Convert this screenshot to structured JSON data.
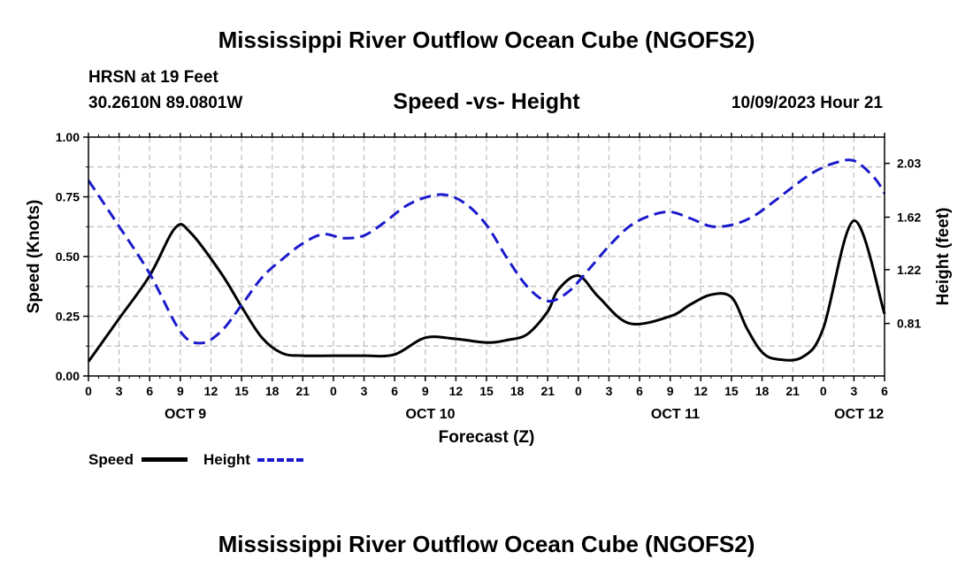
{
  "page": {
    "title": "Mississippi River Outflow Ocean Cube (NGOFS2)",
    "station": "HRSN at 19 Feet",
    "coords": "30.2610N  89.0801W",
    "datetime": "10/09/2023 Hour 21",
    "footer_title": "Mississippi River Outflow Ocean Cube (NGOFS2)"
  },
  "legend": {
    "speed_label": "Speed",
    "height_label": "Height"
  },
  "colors": {
    "speed": "#000000",
    "height": "#1a1acc",
    "grid": "#bdbdbd"
  },
  "chart_data": {
    "type": "line",
    "title": "Speed -vs- Height",
    "xlabel": "Forecast (Z)",
    "ylabel": "Speed (Knots)",
    "y2label": "Height (feet)",
    "x_range_hours": [
      0,
      78
    ],
    "ylim": [
      0,
      1
    ],
    "y2lim": [
      0.41,
      2.23
    ],
    "x_tick_step_hours": 3,
    "x_tick_labels": [
      "0",
      "3",
      "6",
      "9",
      "12",
      "15",
      "18",
      "21",
      "0",
      "3",
      "6",
      "9",
      "12",
      "15",
      "18",
      "21",
      "0",
      "3",
      "6",
      "9",
      "12",
      "15",
      "18",
      "21",
      "0",
      "3",
      "6"
    ],
    "day_labels": [
      {
        "label": "OCT 9",
        "hour": 9.5
      },
      {
        "label": "OCT 10",
        "hour": 33.5
      },
      {
        "label": "OCT 11",
        "hour": 57.5
      },
      {
        "label": "OCT 12",
        "hour": 75.5
      }
    ],
    "y_ticks": [
      0.0,
      0.25,
      0.5,
      0.75,
      1.0
    ],
    "y_tick_labels": [
      "0.00",
      "0.25",
      "0.50",
      "0.75",
      "1.00"
    ],
    "y2_ticks": [
      0.81,
      1.22,
      1.62,
      2.03
    ],
    "y2_tick_labels": [
      "0.81",
      "1.22",
      "1.62",
      "2.03"
    ],
    "series": [
      {
        "name": "Speed",
        "axis": "left",
        "style": "solid",
        "x": [
          0,
          3,
          6,
          8.5,
          10,
          13,
          15,
          17,
          19,
          21,
          24,
          27,
          30,
          33,
          36,
          39,
          41,
          43,
          45,
          46,
          48,
          50,
          53,
          57,
          59,
          61,
          63,
          64.5,
          66,
          67.5,
          70,
          72,
          75,
          78
        ],
        "y": [
          0.06,
          0.24,
          0.42,
          0.62,
          0.6,
          0.43,
          0.29,
          0.16,
          0.095,
          0.085,
          0.085,
          0.085,
          0.09,
          0.16,
          0.155,
          0.14,
          0.15,
          0.175,
          0.27,
          0.36,
          0.42,
          0.33,
          0.22,
          0.25,
          0.3,
          0.34,
          0.33,
          0.2,
          0.1,
          0.07,
          0.08,
          0.2,
          0.65,
          0.26
        ]
      },
      {
        "name": "Height",
        "axis": "right",
        "style": "dashed",
        "x": [
          0,
          3,
          6,
          9,
          11,
          13,
          15,
          17,
          19,
          21,
          23,
          25,
          27,
          29,
          31,
          33,
          35,
          37,
          39,
          41,
          43,
          45,
          47,
          49,
          51,
          53,
          55,
          57,
          59,
          61,
          63,
          65,
          67,
          69,
          71,
          73,
          75,
          77,
          78
        ],
        "y": [
          1.9,
          1.55,
          1.19,
          0.75,
          0.66,
          0.75,
          0.95,
          1.16,
          1.3,
          1.42,
          1.49,
          1.46,
          1.48,
          1.58,
          1.7,
          1.77,
          1.79,
          1.72,
          1.56,
          1.31,
          1.09,
          0.98,
          1.05,
          1.22,
          1.4,
          1.55,
          1.63,
          1.66,
          1.61,
          1.55,
          1.56,
          1.62,
          1.73,
          1.85,
          1.96,
          2.03,
          2.05,
          1.92,
          1.8
        ]
      }
    ]
  }
}
